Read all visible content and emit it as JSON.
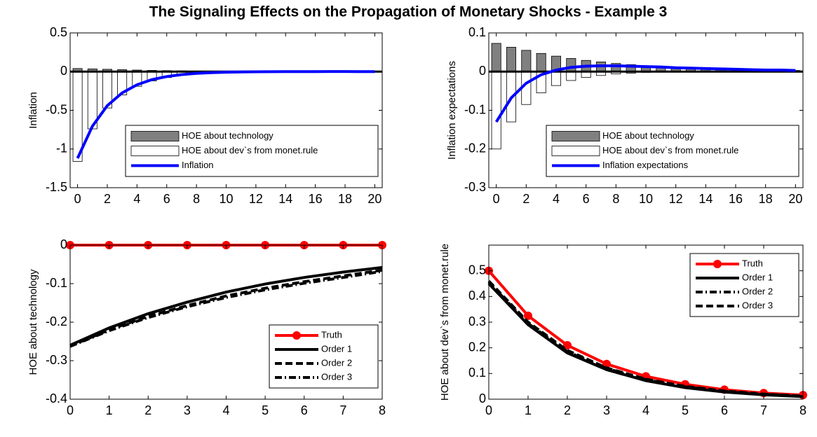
{
  "title": "The Signaling Effects on the Propagation of Monetary Shocks - Example 3",
  "chart_data": [
    {
      "type": "bar",
      "ylabel": "Inflation",
      "legend": "lower right",
      "x": [
        0,
        1,
        2,
        3,
        4,
        5,
        6,
        7,
        8,
        9,
        10,
        11,
        12,
        13,
        14,
        15,
        16,
        17,
        18,
        19,
        20
      ],
      "xlim": [
        -0.5,
        20.5
      ],
      "xticks": [
        0,
        2,
        4,
        6,
        8,
        10,
        12,
        14,
        16,
        18,
        20
      ],
      "ylim": [
        -1.5,
        0.5
      ],
      "yticks": [
        -1.5,
        -1,
        -0.5,
        0,
        0.5
      ],
      "series": [
        {
          "name": "HOE about technology",
          "type": "bar",
          "color": "#808080",
          "values": [
            0.04,
            0.035,
            0.03,
            0.025,
            0.02,
            0.016,
            0.013,
            0.01,
            0.008,
            0.006,
            0.005,
            0.004,
            0.003,
            0.002,
            0.002,
            0.001,
            0.001,
            0.001,
            0.001,
            0,
            0
          ]
        },
        {
          "name": "HOE about dev`s from monet.rule",
          "type": "bar",
          "color": "#ffffff",
          "values": [
            -1.16,
            -0.74,
            -0.47,
            -0.3,
            -0.19,
            -0.12,
            -0.077,
            -0.049,
            -0.031,
            -0.02,
            -0.013,
            -0.008,
            -0.005,
            -0.003,
            -0.002,
            -0.001,
            -0.001,
            0,
            0,
            0,
            0
          ]
        },
        {
          "name": "Inflation",
          "type": "line",
          "color": "#0000ff",
          "values": [
            -1.12,
            -0.705,
            -0.44,
            -0.275,
            -0.17,
            -0.104,
            -0.064,
            -0.039,
            -0.023,
            -0.014,
            -0.008,
            -0.004,
            -0.002,
            -0.001,
            0,
            0,
            0,
            0.001,
            0.001,
            0,
            0
          ]
        }
      ]
    },
    {
      "type": "bar",
      "ylabel": "Inflation expectations",
      "legend": "lower right",
      "x": [
        0,
        1,
        2,
        3,
        4,
        5,
        6,
        7,
        8,
        9,
        10,
        11,
        12,
        13,
        14,
        15,
        16,
        17,
        18,
        19,
        20
      ],
      "xlim": [
        -0.5,
        20.5
      ],
      "xticks": [
        0,
        2,
        4,
        6,
        8,
        10,
        12,
        14,
        16,
        18,
        20
      ],
      "ylim": [
        -0.3,
        0.1
      ],
      "yticks": [
        -0.3,
        -0.2,
        -0.1,
        0,
        0.1
      ],
      "series": [
        {
          "name": "HOE about technology",
          "type": "bar",
          "color": "#808080",
          "values": [
            0.073,
            0.063,
            0.055,
            0.047,
            0.04,
            0.034,
            0.029,
            0.025,
            0.021,
            0.018,
            0.015,
            0.013,
            0.011,
            0.009,
            0.008,
            0.007,
            0.006,
            0.005,
            0.004,
            0.004,
            0.003
          ]
        },
        {
          "name": "HOE about dev`s from monet.rule",
          "type": "bar",
          "color": "#ffffff",
          "values": [
            -0.2,
            -0.13,
            -0.085,
            -0.055,
            -0.036,
            -0.023,
            -0.015,
            -0.01,
            -0.006,
            -0.004,
            -0.002,
            -0.001,
            -0.001,
            0,
            0,
            0,
            0,
            0,
            0,
            0,
            0
          ]
        },
        {
          "name": "Inflation expectations",
          "type": "line",
          "color": "#0000ff",
          "values": [
            -0.13,
            -0.068,
            -0.03,
            -0.008,
            0.004,
            0.011,
            0.014,
            0.015,
            0.015,
            0.014,
            0.013,
            0.012,
            0.01,
            0.009,
            0.008,
            0.007,
            0.006,
            0.005,
            0.004,
            0.004,
            0.003
          ]
        }
      ]
    },
    {
      "type": "line",
      "ylabel": "HOE about technology",
      "legend": "lower right",
      "x": [
        0,
        1,
        2,
        3,
        4,
        5,
        6,
        7,
        8
      ],
      "xlim": [
        0,
        8
      ],
      "xticks": [
        0,
        1,
        2,
        3,
        4,
        5,
        6,
        7,
        8
      ],
      "ylim": [
        -0.4,
        0
      ],
      "yticks": [
        -0.4,
        -0.3,
        -0.2,
        -0.1,
        0
      ],
      "series": [
        {
          "name": "Truth",
          "color": "#ff0000",
          "style": "solid",
          "marker": "o",
          "values": [
            0,
            0,
            0,
            0,
            0,
            0,
            0,
            0,
            0
          ]
        },
        {
          "name": "Order 1",
          "color": "#000000",
          "style": "solid",
          "values": [
            -0.26,
            -0.215,
            -0.178,
            -0.148,
            -0.122,
            -0.101,
            -0.084,
            -0.07,
            -0.058
          ]
        },
        {
          "name": "Order 2",
          "color": "#000000",
          "style": "dashed",
          "values": [
            -0.262,
            -0.22,
            -0.185,
            -0.157,
            -0.132,
            -0.112,
            -0.095,
            -0.08,
            -0.065
          ]
        },
        {
          "name": "Order 3",
          "color": "#000000",
          "style": "dashdot",
          "values": [
            -0.263,
            -0.222,
            -0.188,
            -0.16,
            -0.136,
            -0.116,
            -0.099,
            -0.084,
            -0.068
          ]
        }
      ]
    },
    {
      "type": "line",
      "ylabel": "HOE about dev`s from monet.rule",
      "legend": "upper right",
      "x": [
        0,
        1,
        2,
        3,
        4,
        5,
        6,
        7,
        8
      ],
      "xlim": [
        0,
        8
      ],
      "xticks": [
        0,
        1,
        2,
        3,
        4,
        5,
        6,
        7,
        8
      ],
      "ylim": [
        0,
        0.6
      ],
      "yticks": [
        0,
        0.1,
        0.2,
        0.3,
        0.4,
        0.5
      ],
      "series": [
        {
          "name": "Truth",
          "color": "#ff0000",
          "style": "solid",
          "marker": "o",
          "values": [
            0.5,
            0.325,
            0.21,
            0.137,
            0.089,
            0.058,
            0.037,
            0.024,
            0.016
          ]
        },
        {
          "name": "Order 1",
          "color": "#000000",
          "style": "solid",
          "values": [
            0.45,
            0.29,
            0.18,
            0.115,
            0.072,
            0.045,
            0.028,
            0.017,
            0.01
          ]
        },
        {
          "name": "Order 2",
          "color": "#000000",
          "style": "dashdot",
          "values": [
            0.455,
            0.295,
            0.185,
            0.12,
            0.076,
            0.048,
            0.03,
            0.019,
            0.011
          ]
        },
        {
          "name": "Order 3",
          "color": "#000000",
          "style": "dashed",
          "values": [
            0.46,
            0.3,
            0.19,
            0.122,
            0.078,
            0.05,
            0.032,
            0.02,
            0.012
          ]
        }
      ]
    }
  ]
}
